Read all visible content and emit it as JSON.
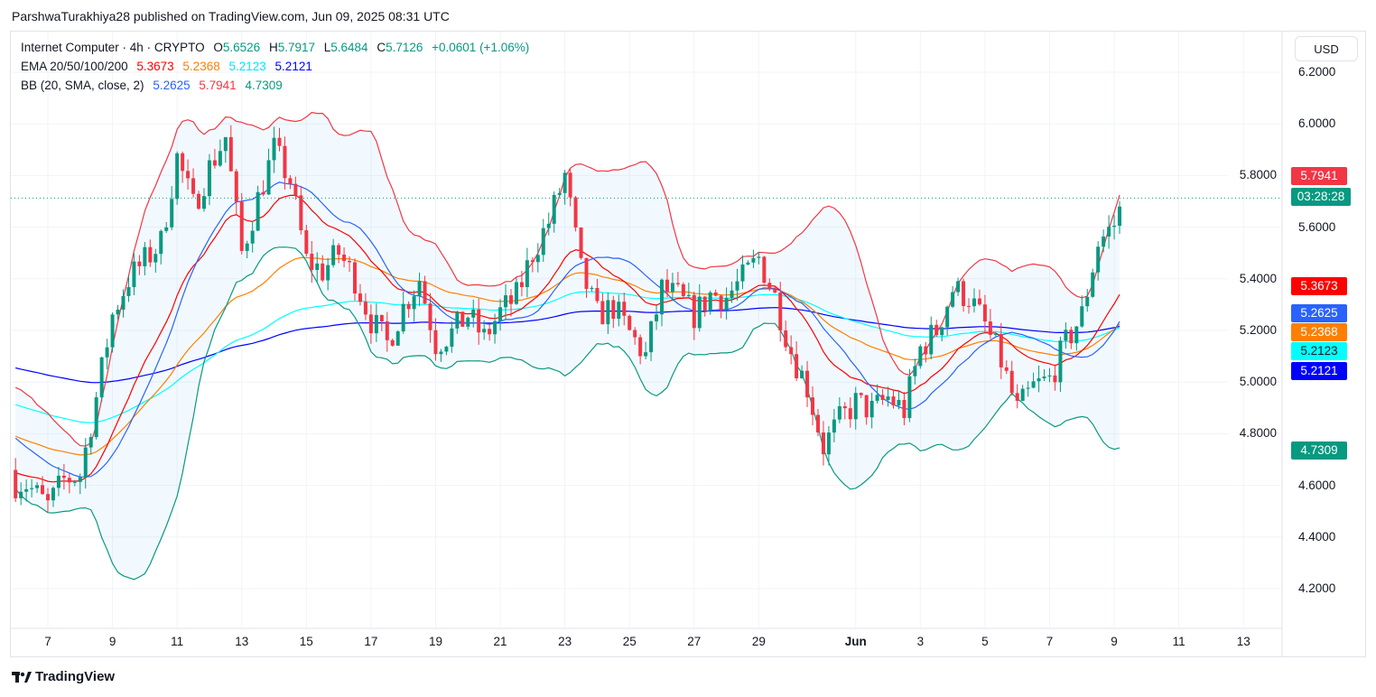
{
  "publisher_line": "ParshwaTurakhiya28 published on TradingView.com, Jun 09, 2025 08:31 UTC",
  "legend": {
    "symbol": "Internet Computer · 4h · CRYPTO",
    "o_label": "O",
    "o": "5.6526",
    "h_label": "H",
    "h": "5.7917",
    "l_label": "L",
    "l": "5.6484",
    "c_label": "C",
    "c": "5.7126",
    "change": "+0.0601 (+1.06%)",
    "ema_title": "EMA 20/50/100/200",
    "ema20": "5.3673",
    "ema50": "5.2368",
    "ema100": "5.2123",
    "ema200": "5.2121",
    "bb_title": "BB (20, SMA, close, 2)",
    "bb_basis": "5.2625",
    "bb_upper": "5.7941",
    "bb_lower": "4.7309"
  },
  "currency_button": "USD",
  "price_labels": {
    "bb_upper": "5.7941",
    "countdown": "03:28:28",
    "ema20": "5.3673",
    "bb_basis": "5.2625",
    "ema50": "5.2368",
    "ema100": "5.2123",
    "ema200": "5.2121",
    "bb_lower": "4.7309"
  },
  "brand": "TradingView",
  "colors": {
    "up": "#089981",
    "down": "#f23645",
    "ema20": "#ff0000",
    "ema50": "#ff7f00",
    "ema100": "#00ffff",
    "ema200": "#0000ff",
    "bb_basis": "#2962ff",
    "bb_upper": "#f23645",
    "bb_lower": "#089981"
  },
  "chart_data": {
    "type": "candlestick",
    "timeframe": "4h",
    "ylim": [
      4.05,
      6.35
    ],
    "y_ticks": [
      "6.2000",
      "6.0000",
      "5.8000",
      "5.6000",
      "5.4000",
      "5.2000",
      "5.0000",
      "4.8000",
      "4.6000",
      "4.4000",
      "4.2000"
    ],
    "x_ticks": [
      "7",
      "9",
      "11",
      "13",
      "15",
      "17",
      "19",
      "21",
      "23",
      "25",
      "27",
      "29",
      "Jun",
      "3",
      "5",
      "7",
      "9",
      "11",
      "13"
    ],
    "x_tick_days": [
      7,
      9,
      11,
      13,
      15,
      17,
      19,
      21,
      23,
      25,
      27,
      29,
      32,
      34,
      36,
      38,
      40,
      42,
      44
    ],
    "last_close": 5.7126,
    "ema_seed": {
      "ema20": 4.66,
      "ema50": 4.8,
      "ema100": 4.92,
      "ema200": 5.06
    },
    "anchor_days": [
      6.3,
      7,
      7.5,
      8,
      8.5,
      9,
      9.5,
      10,
      10.5,
      11,
      11.5,
      12,
      12.5,
      13,
      13.5,
      14,
      14.5,
      15,
      15.5,
      16,
      16.5,
      17,
      17.5,
      18,
      18.5,
      19,
      19.5,
      20,
      20.5,
      21,
      21.5,
      22,
      22.5,
      23,
      23.5,
      24,
      24.5,
      25,
      25.5,
      26,
      26.5,
      27,
      27.5,
      28,
      28.5,
      29,
      29.5,
      30,
      30.5,
      31,
      31.5,
      32,
      32.5,
      33,
      33.5,
      34,
      34.5,
      35,
      35.5,
      36,
      36.5,
      37,
      37.5,
      38,
      38.5,
      39,
      39.5,
      40,
      40.33
    ],
    "anchor_closes": [
      4.61,
      4.52,
      4.62,
      4.64,
      4.94,
      5.26,
      5.4,
      5.47,
      5.54,
      5.87,
      5.68,
      5.83,
      5.95,
      5.5,
      5.71,
      5.9,
      5.78,
      5.47,
      5.43,
      5.5,
      5.4,
      5.24,
      5.15,
      5.29,
      5.4,
      5.15,
      5.19,
      5.26,
      5.17,
      5.27,
      5.33,
      5.5,
      5.62,
      5.8,
      5.43,
      5.26,
      5.29,
      5.19,
      5.1,
      5.36,
      5.33,
      5.26,
      5.34,
      5.33,
      5.4,
      5.48,
      5.33,
      5.12,
      4.98,
      4.75,
      4.85,
      4.92,
      4.89,
      4.94,
      4.89,
      5.13,
      5.2,
      5.36,
      5.33,
      5.22,
      5.08,
      4.89,
      4.98,
      5.01,
      5.15,
      5.26,
      5.54,
      5.61,
      5.7126
    ]
  }
}
